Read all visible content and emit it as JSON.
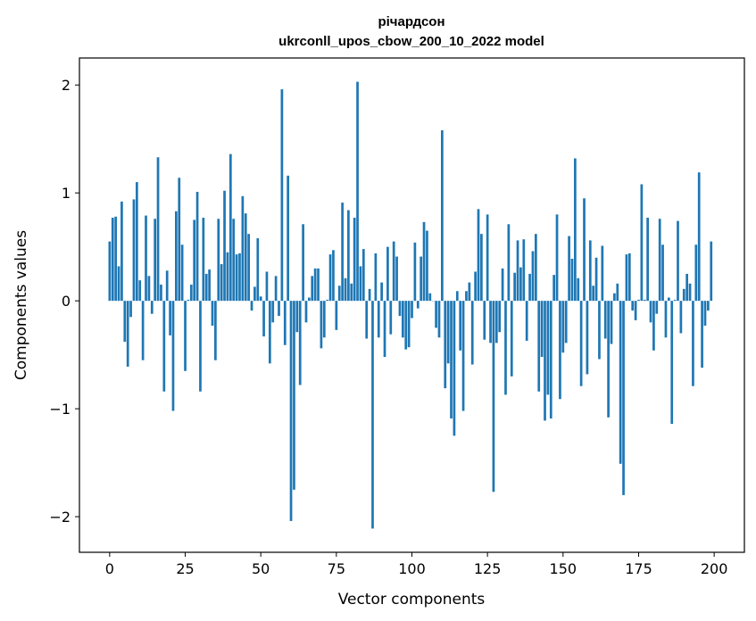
{
  "chart_data": {
    "type": "bar",
    "title_line1": "річардсон",
    "title_line2": "ukrconll_upos_cbow_200_10_2022 model",
    "xlabel": "Vector components",
    "ylabel": "Components values",
    "xlim": [
      -10,
      210
    ],
    "ylim": [
      -2.33,
      2.25
    ],
    "xticks": [
      0,
      25,
      50,
      75,
      100,
      125,
      150,
      175,
      200
    ],
    "xtick_labels": [
      "0",
      "25",
      "50",
      "75",
      "100",
      "125",
      "150",
      "175",
      "200"
    ],
    "yticks": [
      2,
      1,
      0,
      -1,
      -2
    ],
    "ytick_labels": [
      "2",
      "1",
      "0",
      "−1",
      "−2"
    ],
    "bar_color": "#1f77b4",
    "grid": false,
    "x": [
      0,
      1,
      2,
      3,
      4,
      5,
      6,
      7,
      8,
      9,
      10,
      11,
      12,
      13,
      14,
      15,
      16,
      17,
      18,
      19,
      20,
      21,
      22,
      23,
      24,
      25,
      26,
      27,
      28,
      29,
      30,
      31,
      32,
      33,
      34,
      35,
      36,
      37,
      38,
      39,
      40,
      41,
      42,
      43,
      44,
      45,
      46,
      47,
      48,
      49,
      50,
      51,
      52,
      53,
      54,
      55,
      56,
      57,
      58,
      59,
      60,
      61,
      62,
      63,
      64,
      65,
      66,
      67,
      68,
      69,
      70,
      71,
      72,
      73,
      74,
      75,
      76,
      77,
      78,
      79,
      80,
      81,
      82,
      83,
      84,
      85,
      86,
      87,
      88,
      89,
      90,
      91,
      92,
      93,
      94,
      95,
      96,
      97,
      98,
      99,
      100,
      101,
      102,
      103,
      104,
      105,
      106,
      107,
      108,
      109,
      110,
      111,
      112,
      113,
      114,
      115,
      116,
      117,
      118,
      119,
      120,
      121,
      122,
      123,
      124,
      125,
      126,
      127,
      128,
      129,
      130,
      131,
      132,
      133,
      134,
      135,
      136,
      137,
      138,
      139,
      140,
      141,
      142,
      143,
      144,
      145,
      146,
      147,
      148,
      149,
      150,
      151,
      152,
      153,
      154,
      155,
      156,
      157,
      158,
      159,
      160,
      161,
      162,
      163,
      164,
      165,
      166,
      167,
      168,
      169,
      170,
      171,
      172,
      173,
      174,
      175,
      176,
      177,
      178,
      179,
      180,
      181,
      182,
      183,
      184,
      185,
      186,
      187,
      188,
      189,
      190,
      191,
      192,
      193,
      194,
      195,
      196,
      197,
      198,
      199
    ],
    "values": [
      0.55,
      0.77,
      0.78,
      0.32,
      0.92,
      -0.38,
      -0.61,
      -0.15,
      0.94,
      1.1,
      0.19,
      -0.55,
      0.79,
      0.23,
      -0.12,
      0.76,
      1.33,
      0.15,
      -0.84,
      0.28,
      -0.32,
      -1.02,
      0.83,
      1.14,
      0.52,
      -0.65,
      0.01,
      0.15,
      0.75,
      1.01,
      -0.84,
      0.77,
      0.25,
      0.29,
      -0.23,
      -0.55,
      0.76,
      0.34,
      1.02,
      0.45,
      1.36,
      0.76,
      0.43,
      0.44,
      0.97,
      0.81,
      0.62,
      -0.09,
      0.13,
      0.58,
      0.04,
      -0.33,
      0.27,
      -0.58,
      -0.2,
      0.23,
      -0.14,
      1.96,
      -0.41,
      1.16,
      -2.04,
      -1.75,
      -0.29,
      -0.78,
      0.71,
      -0.2,
      0.03,
      0.23,
      0.3,
      0.3,
      -0.44,
      -0.34,
      0.01,
      0.43,
      0.47,
      -0.27,
      0.14,
      0.91,
      0.21,
      0.84,
      0.16,
      0.77,
      2.03,
      0.32,
      0.48,
      -0.35,
      0.11,
      -2.11,
      0.44,
      -0.34,
      0.17,
      -0.52,
      0.5,
      -0.31,
      0.55,
      0.41,
      -0.14,
      -0.34,
      -0.45,
      -0.43,
      -0.16,
      0.54,
      -0.07,
      0.41,
      0.73,
      0.65,
      0.07,
      0.0,
      -0.25,
      -0.34,
      1.58,
      -0.81,
      -0.58,
      -1.09,
      -1.25,
      0.09,
      -0.46,
      -1.02,
      0.09,
      0.17,
      -0.59,
      0.27,
      0.85,
      0.62,
      -0.36,
      0.8,
      -0.39,
      -1.77,
      -0.39,
      -0.29,
      0.3,
      -0.87,
      0.71,
      -0.7,
      0.26,
      0.56,
      0.31,
      0.57,
      -0.37,
      0.25,
      0.46,
      0.62,
      -0.84,
      -0.52,
      -1.11,
      -0.87,
      -1.09,
      0.24,
      0.8,
      -0.91,
      -0.48,
      -0.39,
      0.6,
      0.39,
      1.32,
      0.21,
      -0.79,
      0.95,
      -0.68,
      0.56,
      0.14,
      0.4,
      -0.54,
      0.51,
      -0.35,
      -1.08,
      -0.4,
      0.07,
      0.16,
      -1.51,
      -1.8,
      0.43,
      0.44,
      -0.09,
      -0.18,
      0.01,
      1.08,
      0.01,
      0.77,
      -0.2,
      -0.46,
      -0.12,
      0.76,
      0.52,
      -0.34,
      0.03,
      -1.14,
      0.01,
      0.74,
      -0.3,
      0.11,
      0.25,
      0.16,
      -0.79,
      0.52,
      1.19,
      -0.62,
      -0.23,
      -0.09,
      0.55
    ]
  }
}
